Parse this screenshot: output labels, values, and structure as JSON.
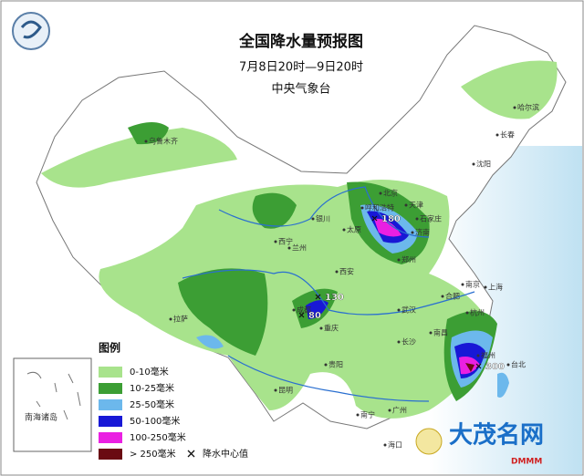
{
  "header": {
    "title": "全国降水量预报图",
    "period": "7月8日20时—9日20时",
    "source": "中央气象台"
  },
  "legend": {
    "title": "图例",
    "items": [
      {
        "label": "0-10毫米",
        "color": "#a8e38c"
      },
      {
        "label": "10-25毫米",
        "color": "#3c9e34"
      },
      {
        "label": "25-50毫米",
        "color": "#6cb8ec"
      },
      {
        "label": "50-100毫米",
        "color": "#1818d6"
      },
      {
        "label": "100-250毫米",
        "color": "#ea20e2"
      },
      {
        "label": "> 250毫米",
        "color": "#6a0a12"
      }
    ],
    "center_label": "降水中心值"
  },
  "cities": [
    "乌鲁木齐",
    "哈尔滨",
    "长春",
    "沈阳",
    "北京",
    "天津",
    "石家庄",
    "太原",
    "济南",
    "郑州",
    "西安",
    "兰州",
    "西宁",
    "银川",
    "拉萨",
    "成都",
    "重庆",
    "贵阳",
    "昆明",
    "南宁",
    "广州",
    "长沙",
    "武汉",
    "合肥",
    "南京",
    "上海",
    "杭州",
    "南昌",
    "福州",
    "台北",
    "海口",
    "呼和浩特"
  ],
  "rain_centers": [
    {
      "value": "180"
    },
    {
      "value": "130"
    },
    {
      "value": "80"
    },
    {
      "value": "300"
    }
  ],
  "inset": {
    "label": "南海诸岛"
  },
  "watermark": {
    "name": "大茂名网",
    "url": "DMMM"
  }
}
